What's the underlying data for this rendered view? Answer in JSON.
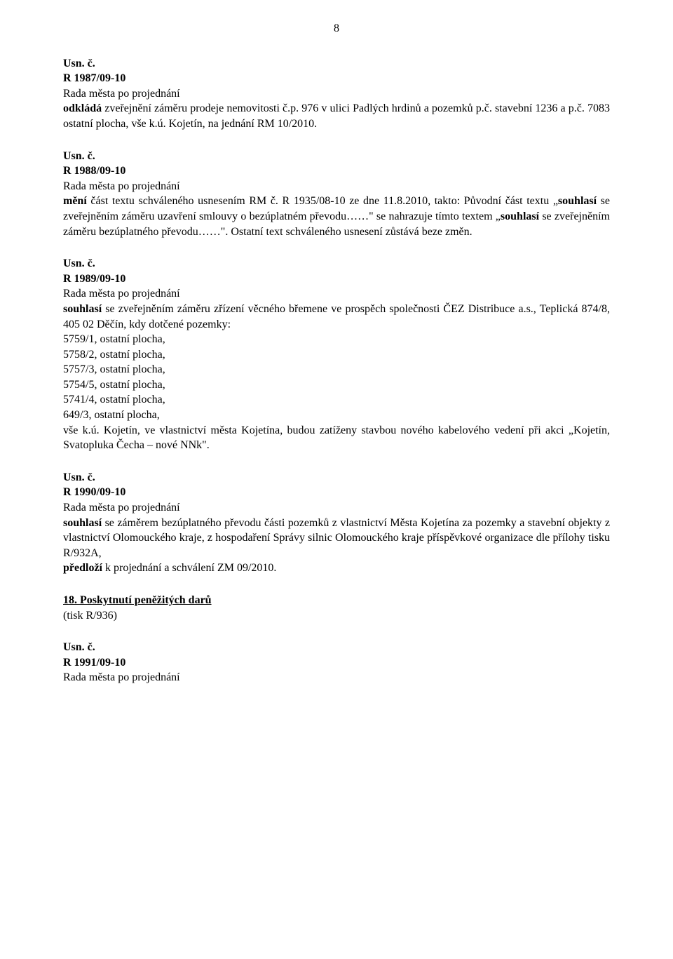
{
  "page_number": "8",
  "usn_label": "Usn. č.",
  "rada_text": "Rada města po projednání",
  "sections": {
    "s1": {
      "num": "R 1987/09-10",
      "bold1": "odkládá",
      "text1": " zveřejnění záměru prodeje nemovitosti č.p. 976 v ulici Padlých hrdinů a pozemků p.č. stavební 1236 a p.č. 7083 ostatní plocha, vše k.ú. Kojetín, na jednání RM 10/2010."
    },
    "s2": {
      "num": "R 1988/09-10",
      "bold1": "mění",
      "text1": " část textu schváleného usnesením RM č. R 1935/08-10 ze dne 11.8.2010, takto: Původní část textu „",
      "bold2": "souhlasí",
      "text2": " se zveřejněním záměru uzavření smlouvy o bezúplatném převodu……\" se nahrazuje tímto textem „",
      "bold3": "souhlasí",
      "text3": " se zveřejněním záměru bezúplatného převodu……\". Ostatní text schváleného usnesení zůstává beze změn."
    },
    "s3": {
      "num": "R 1989/09-10",
      "bold1": "souhlasí",
      "text1": " se zveřejněním záměru zřízení věcného břemene ve prospěch společnosti ČEZ Distribuce a.s., Teplická 874/8, 405 02 Děčín, kdy dotčené pozemky:",
      "l1": "5759/1, ostatní plocha,",
      "l2": "5758/2, ostatní plocha,",
      "l3": "5757/3, ostatní plocha,",
      "l4": "5754/5, ostatní plocha,",
      "l5": "5741/4, ostatní plocha,",
      "l6": "649/3, ostatní plocha,",
      "text2": "vše k.ú. Kojetín, ve vlastnictví města Kojetína, budou zatíženy stavbou nového kabelového vedení při akci „Kojetín, Svatopluka Čecha – nové NNk\"."
    },
    "s4": {
      "num": "R 1990/09-10",
      "bold1": "souhlasí",
      "text1": " se záměrem bezúplatného převodu části pozemků z vlastnictví Města Kojetína za pozemky a stavební objekty z vlastnictví Olomouckého kraje, z hospodaření Správy silnic Olomouckého kraje příspěvkové organizace dle přílohy tisku R/932A,",
      "bold2": "předloží",
      "text2": " k projednání a schválení ZM 09/2010."
    },
    "heading18": "18. Poskytnutí peněžitých darů",
    "tisk18": "(tisk R/936)",
    "s5": {
      "num": "R 1991/09-10"
    }
  }
}
